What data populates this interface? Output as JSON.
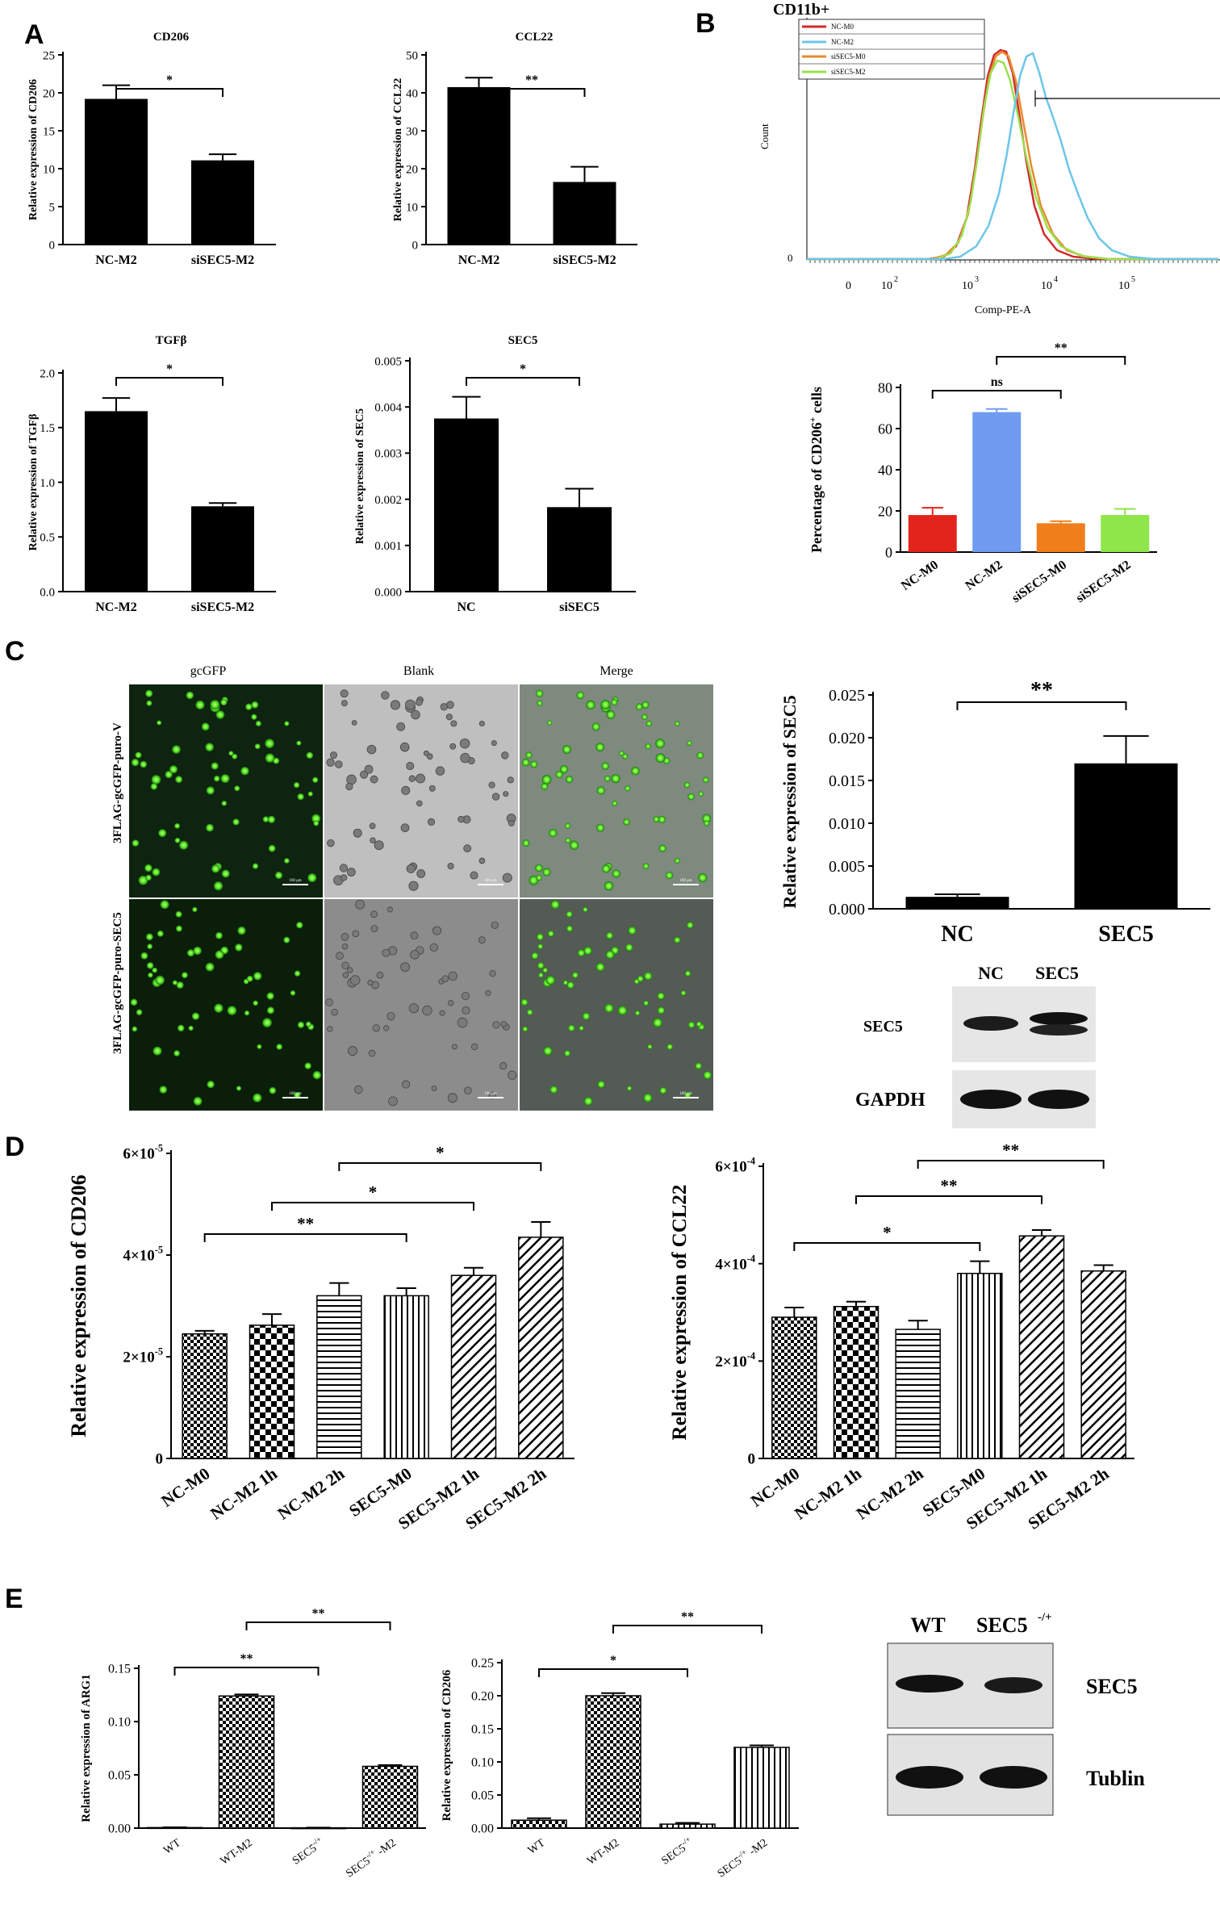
{
  "panel_labels": {
    "A": "A",
    "B": "B",
    "C": "C",
    "D": "D",
    "E": "E"
  },
  "colors": {
    "black": "#000000",
    "red": "#e3241c",
    "blue": "#6f9bf0",
    "orange": "#ef7f1a",
    "green": "#8ee64a",
    "cyan_curve": "#6cc6e8",
    "red_curve": "#d22a2a",
    "orange_curve": "#e88b2e",
    "green_curve": "#9ae04e"
  },
  "flow": {
    "title": "CD11b+",
    "legend": [
      "NC-M0",
      "NC-M2",
      "siSEC5-M0",
      "siSEC5-M2"
    ],
    "ylabel": "Count",
    "xlabel": "Comp-PE-A",
    "ytick": "0",
    "xticks": [
      {
        "base": "0",
        "exp": ""
      },
      {
        "base": "10",
        "exp": "2"
      },
      {
        "base": "10",
        "exp": "3"
      },
      {
        "base": "10",
        "exp": "4"
      },
      {
        "base": "10",
        "exp": "5"
      }
    ]
  },
  "microscopy": {
    "columns": [
      "gcGFP",
      "Blank",
      "Merge"
    ],
    "rows": [
      "3FLAG-gcGFP-puro-V",
      "3FLAG-gcGFP-puro-SEC5"
    ],
    "scale_label": "100 μm"
  },
  "blots": {
    "c_headers": [
      "NC",
      "SEC5"
    ],
    "c_rows": [
      "SEC5",
      "GAPDH"
    ],
    "e_headers": [
      "WT",
      "SEC5"
    ],
    "e_header_sup": "-/+",
    "e_rows": [
      "SEC5",
      "Tublin"
    ]
  },
  "chart_data": [
    {
      "id": "a1",
      "type": "bar",
      "title": "CD206",
      "categories": [
        "NC-M2",
        "siSEC5-M2"
      ],
      "values": [
        19.2,
        11.1
      ],
      "errors": [
        1.8,
        0.8
      ],
      "ylim": [
        0,
        25
      ],
      "ticks": [
        "0",
        "5",
        "10",
        "15",
        "20",
        "25"
      ],
      "tick_values": [
        0,
        5,
        10,
        15,
        20,
        25
      ],
      "ylabel": "Relative expression of CD206",
      "sig": [
        {
          "from": 0,
          "to": 1,
          "label": "*"
        }
      ]
    },
    {
      "id": "a2",
      "type": "bar",
      "title": "CCL22",
      "categories": [
        "NC-M2",
        "siSEC5-M2"
      ],
      "values": [
        41.5,
        16.5
      ],
      "errors": [
        2.5,
        4.0
      ],
      "ylim": [
        0,
        50
      ],
      "ticks": [
        "0",
        "10",
        "20",
        "30",
        "40",
        "50"
      ],
      "tick_values": [
        0,
        10,
        20,
        30,
        40,
        50
      ],
      "ylabel": "Relative expression of CCL22",
      "sig": [
        {
          "from": 0,
          "to": 1,
          "label": "**"
        }
      ]
    },
    {
      "id": "a3",
      "type": "bar",
      "title": "TGFβ",
      "categories": [
        "NC-M2",
        "siSEC5-M2"
      ],
      "values": [
        1.65,
        0.78
      ],
      "errors": [
        0.12,
        0.03
      ],
      "ylim": [
        0,
        2.0
      ],
      "ticks": [
        "0.0",
        "0.5",
        "1.0",
        "1.5",
        "2.0"
      ],
      "tick_values": [
        0,
        0.5,
        1.0,
        1.5,
        2.0
      ],
      "ylabel": "Relative expression of TGFβ",
      "sig": [
        {
          "from": 0,
          "to": 1,
          "label": "*"
        }
      ]
    },
    {
      "id": "a4",
      "type": "bar",
      "title": "SEC5",
      "categories": [
        "NC",
        "siSEC5"
      ],
      "values": [
        0.00375,
        0.00183
      ],
      "errors": [
        0.00047,
        0.0004
      ],
      "ylim": [
        0,
        0.005
      ],
      "ticks": [
        "0.000",
        "0.001",
        "0.002",
        "0.003",
        "0.004",
        "0.005"
      ],
      "tick_values": [
        0,
        0.001,
        0.002,
        0.003,
        0.004,
        0.005
      ],
      "ylabel": "Relative expression of SEC5",
      "sig": [
        {
          "from": 0,
          "to": 1,
          "label": "*"
        }
      ]
    },
    {
      "id": "b",
      "type": "bar",
      "categories": [
        "NC-M0",
        "NC-M2",
        "siSEC5-M0",
        "siSEC5-M2"
      ],
      "values": [
        18,
        68,
        14,
        18
      ],
      "errors": [
        3.5,
        1.5,
        1.0,
        3.0
      ],
      "ylim": [
        0,
        80
      ],
      "ticks": [
        "0",
        "20",
        "40",
        "60",
        "80"
      ],
      "tick_values": [
        0,
        20,
        40,
        60,
        80
      ],
      "ylabel": "Percentage of CD206",
      "ylabel_sup": "+",
      "ylabel_tail": " cells",
      "colors": [
        "#e3241c",
        "#6f9bf0",
        "#ef7f1a",
        "#8ee64a"
      ],
      "sig": [
        {
          "from": 0,
          "to": 2,
          "label": "ns"
        },
        {
          "from": 1,
          "to": 3,
          "label": "**"
        }
      ]
    },
    {
      "id": "c",
      "type": "bar",
      "categories": [
        "NC",
        "SEC5"
      ],
      "values": [
        0.0014,
        0.017
      ],
      "errors": [
        0.0003,
        0.0032
      ],
      "ylim": [
        0,
        0.025
      ],
      "ticks": [
        "0.000",
        "0.005",
        "0.010",
        "0.015",
        "0.020",
        "0.025"
      ],
      "tick_values": [
        0,
        0.005,
        0.01,
        0.015,
        0.02,
        0.025
      ],
      "ylabel": "Relative expression of SEC5",
      "sig": [
        {
          "from": 0,
          "to": 1,
          "label": "**"
        }
      ]
    },
    {
      "id": "d1",
      "type": "bar",
      "categories": [
        "NC-M0",
        "NC-M2 1h",
        "NC-M2 2h",
        "SEC5-M0",
        "SEC5-M2 1h",
        "SEC5-M2 2h"
      ],
      "values": [
        2.45e-05,
        2.62e-05,
        3.2e-05,
        3.2e-05,
        3.6e-05,
        4.35e-05
      ],
      "errors": [
        6e-07,
        2.2e-06,
        2.5e-06,
        1.5e-06,
        1.5e-06,
        3e-06
      ],
      "ylim": [
        0,
        6e-05
      ],
      "tick_values": [
        0,
        2e-05,
        4e-05,
        6e-05
      ],
      "ticks": [
        {
          "base": "0",
          "exp": ""
        },
        {
          "base": "2×10",
          "exp": "-5"
        },
        {
          "base": "4×10",
          "exp": "-5"
        },
        {
          "base": "6×10",
          "exp": "-5"
        }
      ],
      "ylabel": "Relative expression of CD206",
      "patterns": [
        "check",
        "check-large",
        "hline",
        "vline",
        "diag",
        "diag"
      ],
      "sig": [
        {
          "from": 0,
          "to": 3,
          "label": "**"
        },
        {
          "from": 1,
          "to": 4,
          "label": "*"
        },
        {
          "from": 2,
          "to": 5,
          "label": "*"
        }
      ]
    },
    {
      "id": "d2",
      "type": "bar",
      "categories": [
        "NC-M0",
        "NC-M2 1h",
        "NC-M2 2h",
        "SEC5-M0",
        "SEC5-M2 1h",
        "SEC5-M2 2h"
      ],
      "values": [
        0.00029,
        0.000312,
        0.000265,
        0.00038,
        0.000457,
        0.000385
      ],
      "errors": [
        2e-05,
        1e-05,
        1.8e-05,
        2.5e-05,
        1.2e-05,
        1.2e-05
      ],
      "ylim": [
        0,
        0.0006
      ],
      "tick_values": [
        0,
        0.0002,
        0.0004,
        0.0006
      ],
      "ticks": [
        {
          "base": "0",
          "exp": ""
        },
        {
          "base": "2×10",
          "exp": "-4"
        },
        {
          "base": "4×10",
          "exp": "-4"
        },
        {
          "base": "6×10",
          "exp": "-4"
        }
      ],
      "ylabel": "Relative expression of CCL22",
      "patterns": [
        "check",
        "check-large",
        "hline",
        "vline",
        "diag",
        "diag"
      ],
      "sig": [
        {
          "from": 0,
          "to": 3,
          "label": "*"
        },
        {
          "from": 1,
          "to": 4,
          "label": "**"
        },
        {
          "from": 2,
          "to": 5,
          "label": "**"
        }
      ]
    },
    {
      "id": "e1",
      "type": "bar",
      "categories": [
        {
          "t": "WT"
        },
        {
          "t": "WT-M2"
        },
        {
          "t": "SEC5",
          "s": "-/+"
        },
        {
          "t": "SEC5",
          "s": "-/+",
          "u": " -M2"
        }
      ],
      "values": [
        0.0005,
        0.124,
        0.0003,
        0.058
      ],
      "errors": [
        0.0003,
        0.0015,
        0.0002,
        0.0012
      ],
      "ylim": [
        0,
        0.15
      ],
      "ticks": [
        "0.00",
        "0.05",
        "0.10",
        "0.15"
      ],
      "tick_values": [
        0,
        0.05,
        0.1,
        0.15
      ],
      "ylabel": "Relative expression of ARG1",
      "patterns": [
        "check",
        "check",
        "check",
        "check"
      ],
      "sig": [
        {
          "from": 0,
          "to": 2,
          "label": "**"
        },
        {
          "from": 1,
          "to": 3,
          "label": "**"
        }
      ]
    },
    {
      "id": "e2",
      "type": "bar",
      "categories": [
        {
          "t": "WT"
        },
        {
          "t": "WT-M2"
        },
        {
          "t": "SEC5",
          "s": "-/+"
        },
        {
          "t": "SEC5",
          "s": "-/+",
          "u": " -M2"
        }
      ],
      "values": [
        0.012,
        0.2,
        0.006,
        0.122
      ],
      "errors": [
        0.003,
        0.004,
        0.002,
        0.003
      ],
      "ylim": [
        0,
        0.25
      ],
      "ticks": [
        "0.00",
        "0.05",
        "0.10",
        "0.15",
        "0.20",
        "0.25"
      ],
      "tick_values": [
        0,
        0.05,
        0.1,
        0.15,
        0.2,
        0.25
      ],
      "ylabel": "Relative expression of CD206",
      "patterns": [
        "check",
        "check",
        "vline",
        "vline"
      ],
      "sig": [
        {
          "from": 0,
          "to": 2,
          "label": "*"
        },
        {
          "from": 1,
          "to": 3,
          "label": "**"
        }
      ]
    }
  ]
}
